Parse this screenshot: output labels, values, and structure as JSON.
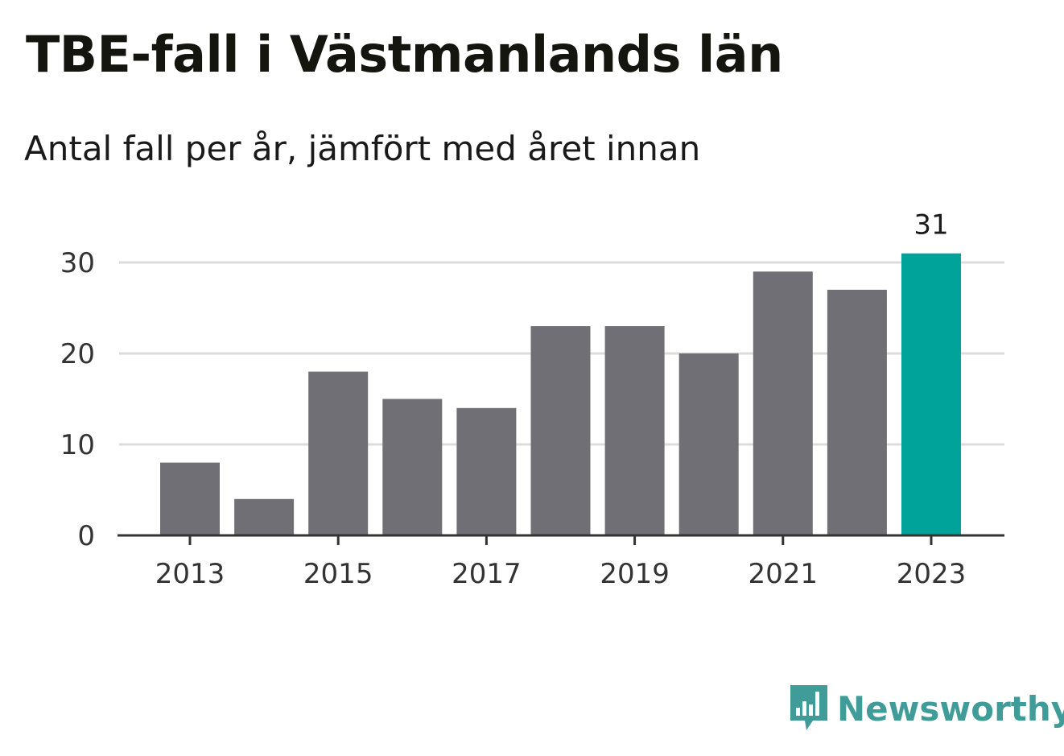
{
  "chart_data": {
    "type": "bar",
    "title": "TBE-fall i Västmanlands län",
    "subtitle": "Antal fall per år, jämfört med året innan",
    "categories": [
      "2013",
      "2014",
      "2015",
      "2016",
      "2017",
      "2018",
      "2019",
      "2020",
      "2021",
      "2022",
      "2023"
    ],
    "values": [
      8,
      4,
      18,
      15,
      14,
      23,
      23,
      20,
      29,
      27,
      31
    ],
    "x_tick_labels": [
      "2013",
      "2015",
      "2017",
      "2019",
      "2021",
      "2023"
    ],
    "y_ticks": [
      0,
      10,
      20,
      30
    ],
    "ylim": [
      0,
      31
    ],
    "grid": true,
    "highlight_index": 10,
    "highlight_label": "31",
    "colors": {
      "bar": "#706f75",
      "highlight": "#00a39a",
      "grid": "#dcdcdc",
      "axis": "#333333"
    }
  },
  "brand": {
    "name": "Newsworthy",
    "icon": "newsworthy-logo-icon",
    "color": "#3f9c98"
  }
}
